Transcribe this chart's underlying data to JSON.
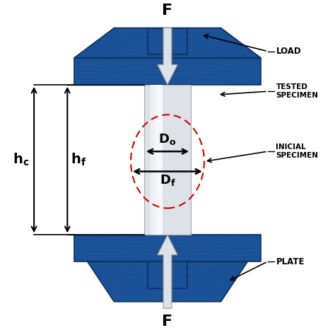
{
  "bg_color": "#ffffff",
  "blue": "#1a5096",
  "blue_dark": "#0d3060",
  "blue_light": "#2060a8",
  "blue_circuit": "#3a7ac0",
  "gray1": "#c8cdd6",
  "gray2": "#dde1e8",
  "gray3": "#eef0f4",
  "gray4": "#f5f7fa",
  "red_dash": "#cc0000",
  "black": "#000000",
  "labels": {
    "load": "LOAD",
    "tested_specimen_1": "TESTED",
    "tested_specimen_2": "SPECIMEN",
    "inicial_specimen_1": "INICIAL",
    "inicial_specimen_2": "SPECIMEN",
    "plate": "PLATE",
    "F": "F",
    "Do": "D",
    "Df": "D",
    "hc": "h",
    "hf": "h"
  },
  "figsize": [
    4.74,
    4.74
  ],
  "dpi": 100
}
